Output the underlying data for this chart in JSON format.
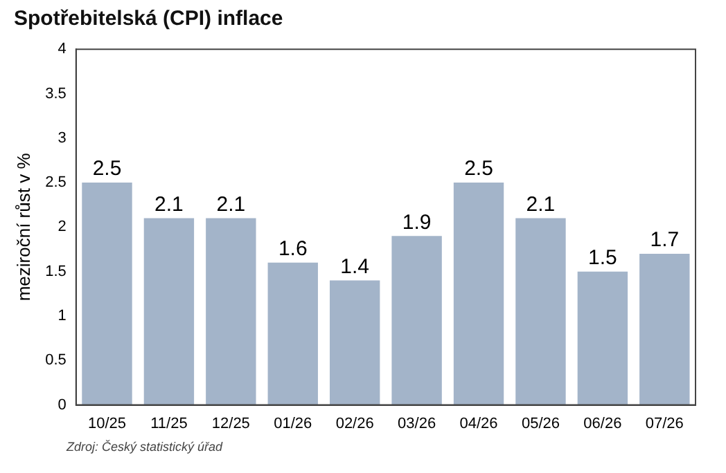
{
  "chart_data": {
    "type": "bar",
    "title": "Spotřebitelská (CPI) inflace",
    "ylabel": "meziroční růst v %",
    "categories": [
      "10/25",
      "11/25",
      "12/25",
      "01/26",
      "02/26",
      "03/26",
      "04/26",
      "05/26",
      "06/26",
      "07/26"
    ],
    "values": [
      2.5,
      2.1,
      2.1,
      1.6,
      1.4,
      1.9,
      2.5,
      2.1,
      1.5,
      1.7
    ],
    "color": "#a3b4c9",
    "ylim": [
      0,
      4
    ],
    "yticks": [
      0,
      {
        "value": 0.5,
        "label": "0.5"
      },
      1,
      {
        "value": 1.5,
        "label": "1.5"
      },
      2,
      {
        "value": 2.5,
        "label": "2.5"
      },
      3,
      {
        "value": 3.5,
        "label": "3.5"
      },
      4
    ],
    "data_labels": true,
    "annotations": [
      "Zdroj: Český statistický úřad"
    ]
  }
}
